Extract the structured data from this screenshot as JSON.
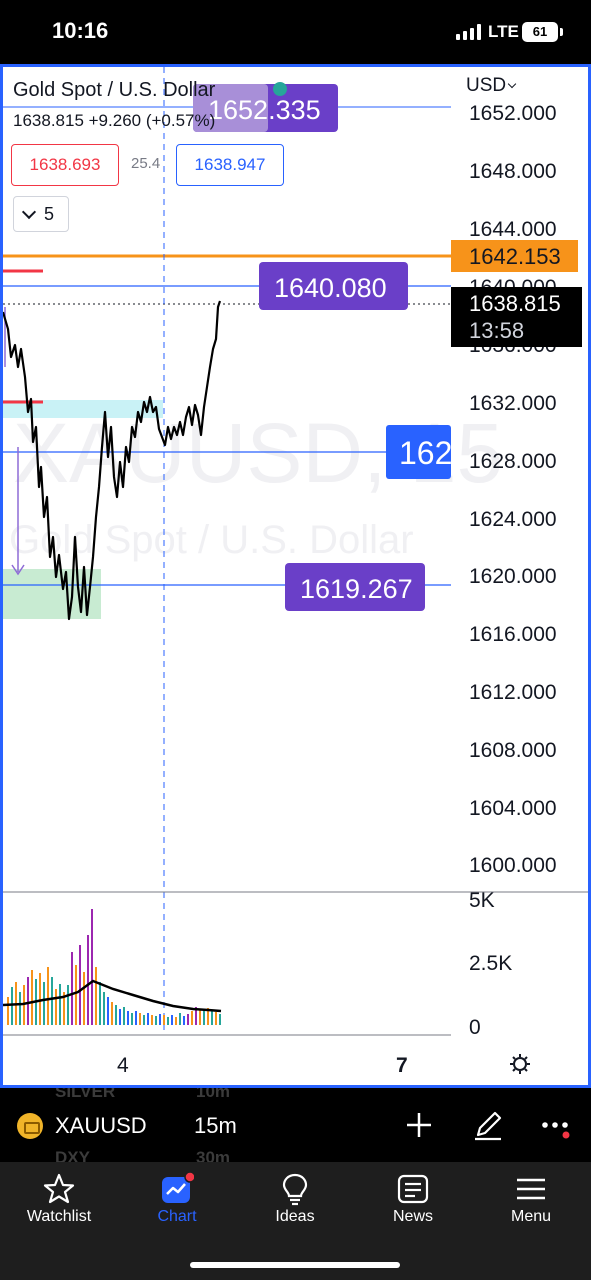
{
  "status": {
    "time": "10:16",
    "network": "LTE",
    "battery": "61"
  },
  "chart": {
    "symbol_title": "Gold Spot / U.S. Dollar",
    "quote": "1638.815 +9.260 (+0.57%)",
    "bid": "1638.693",
    "spread": "25.4",
    "ask": "1638.947",
    "interval_count": "5",
    "currency": "USD",
    "watermark_symbol": "XAUUSD, 15",
    "watermark_desc": "Gold Spot / U.S. Dollar",
    "y_ticks": [
      "1652.000",
      "1648.000",
      "1644.000",
      "1640.000",
      "1636.000",
      "1632.000",
      "1628.000",
      "1624.000",
      "1620.000",
      "1616.000",
      "1612.000",
      "1608.000",
      "1604.000",
      "1600.000"
    ],
    "volume_ticks": [
      "5K",
      "2.5K",
      "0"
    ],
    "x_ticks": [
      "4",
      "7"
    ],
    "labels": {
      "l1652": "1652.335",
      "l1640": "1640.080",
      "l1628": "162",
      "l1619": "1619.267",
      "orange": "1642.153",
      "last_price": "1638.815",
      "countdown": "13:58"
    },
    "colors": {
      "accent": "#2962ff",
      "orange": "#f7931a",
      "purple": "#6a3fc8",
      "red": "#f23645"
    }
  },
  "toolbar": {
    "symbol": "XAUUSD",
    "timeframe": "15m",
    "ghost_1": "SILVER",
    "ghost_2": "10m",
    "ghost_3": "DXY",
    "ghost_4": "30m"
  },
  "tabs": [
    {
      "label": "Watchlist",
      "icon": "star-icon"
    },
    {
      "label": "Chart",
      "icon": "chart-icon"
    },
    {
      "label": "Ideas",
      "icon": "lightbulb-icon"
    },
    {
      "label": "News",
      "icon": "newspaper-icon"
    },
    {
      "label": "Menu",
      "icon": "hamburger-icon"
    }
  ]
}
